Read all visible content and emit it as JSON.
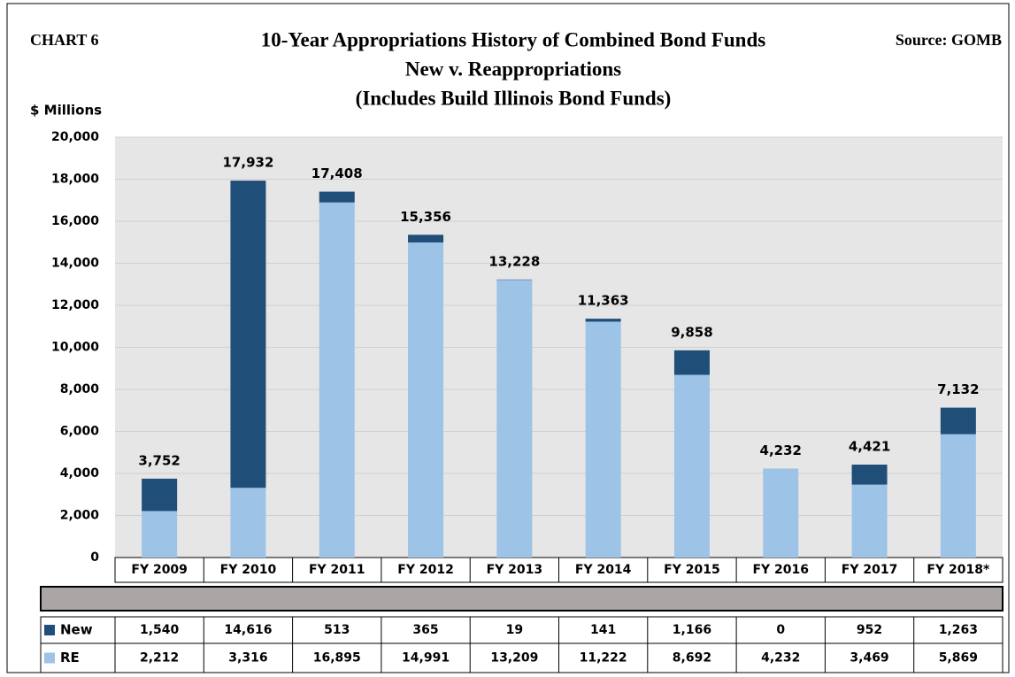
{
  "chart_data": {
    "type": "stacked_bar",
    "chart_label": "CHART 6",
    "title": "10-Year Appropriations History of Combined Bond Funds",
    "subtitle": [
      "New v. Reappropriations",
      "(Includes Build Illinois Bond Funds)"
    ],
    "source": "Source: GOMB",
    "y_label": "$ Millions",
    "categories": [
      "FY 2009",
      "FY 2010",
      "FY 2011",
      "FY 2012",
      "FY 2013",
      "FY 2014",
      "FY 2015",
      "FY 2016",
      "FY 2017",
      "FY 2018*"
    ],
    "series": [
      {
        "name": "RE",
        "color": "#9dc3e6",
        "values": [
          2212,
          3316,
          16895,
          14991,
          13209,
          11222,
          8692,
          4232,
          3469,
          5869
        ],
        "value_labels": [
          "2,212",
          "3,316",
          "16,895",
          "14,991",
          "13,209",
          "11,222",
          "8,692",
          "4,232",
          "3,469",
          "5,869"
        ]
      },
      {
        "name": "New",
        "color": "#1f4e79",
        "values": [
          1540,
          14616,
          513,
          365,
          19,
          141,
          1166,
          0,
          952,
          1263
        ],
        "value_labels": [
          "1,540",
          "14,616",
          "513",
          "365",
          "19",
          "141",
          "1,166",
          "0",
          "952",
          "1,263"
        ]
      }
    ],
    "totals": [
      3752,
      17932,
      17408,
      15356,
      13228,
      11363,
      9858,
      4232,
      4421,
      7132
    ],
    "total_labels": [
      "3,752",
      "17,932",
      "17,408",
      "15,356",
      "13,228",
      "11,363",
      "9,858",
      "4,232",
      "4,421",
      "7,132"
    ],
    "ylim": [
      0,
      20000
    ],
    "yticks": [
      0,
      {
        "value": 2000,
        "label": "2,000"
      },
      {
        "value": 4000,
        "label": "4,000"
      },
      {
        "value": 6000,
        "label": "6,000"
      },
      {
        "value": 8000,
        "label": "8,000"
      },
      {
        "value": 10000,
        "label": "10,000"
      },
      {
        "value": 12000,
        "label": "12,000"
      },
      {
        "value": 14000,
        "label": "14,000"
      },
      {
        "value": 16000,
        "label": "16,000"
      },
      {
        "value": 18000,
        "label": "18,000"
      },
      {
        "value": 20000,
        "label": "20,000"
      }
    ],
    "grid": true
  }
}
